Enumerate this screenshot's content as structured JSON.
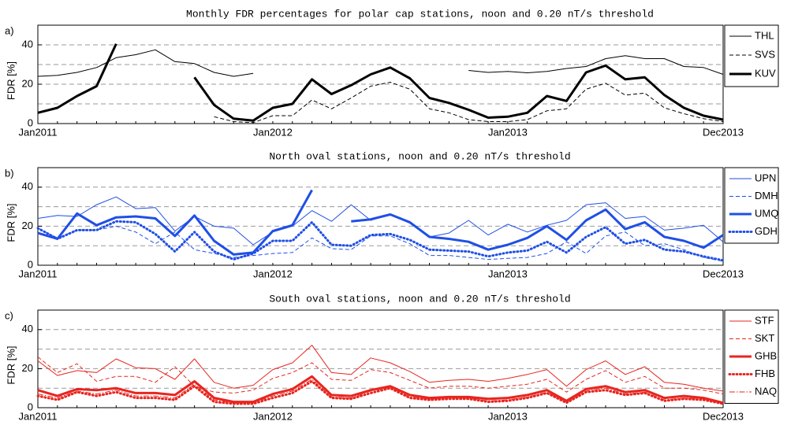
{
  "chart_data": [
    {
      "type": "line",
      "panel_label": "a)",
      "title": "Monthly FDR percentages for polar cap stations, noon and 0.20 nT/s threshold",
      "ylabel": "FDR [%]",
      "categories": [
        "Jan2011",
        null,
        null,
        null,
        null,
        null,
        null,
        null,
        null,
        null,
        null,
        null,
        "Jan2012",
        null,
        null,
        null,
        null,
        null,
        null,
        null,
        null,
        null,
        null,
        null,
        "Jan2013",
        null,
        null,
        null,
        null,
        null,
        null,
        null,
        null,
        null,
        null,
        "Dec2013"
      ],
      "ylim": [
        0,
        50
      ],
      "yticks": [
        0,
        20,
        40
      ],
      "grid_lines": [
        10,
        20,
        30,
        40
      ],
      "grid": true,
      "series": [
        {
          "name": "THL",
          "color": "#000000",
          "style": "solid",
          "width": 1,
          "values": [
            24,
            24.5,
            26,
            28.5,
            33.5,
            35,
            37.5,
            31.5,
            30.5,
            26,
            24,
            25.5,
            null,
            null,
            null,
            null,
            null,
            null,
            null,
            null,
            null,
            null,
            27,
            26,
            26.5,
            25.8,
            26.5,
            28,
            29,
            33,
            34.5,
            33,
            33,
            29,
            28.5,
            25
          ]
        },
        {
          "name": "SVS",
          "color": "#000000",
          "style": "dashed",
          "width": 1,
          "values": [
            null,
            null,
            null,
            null,
            null,
            null,
            null,
            null,
            null,
            3.5,
            1,
            0.5,
            4,
            4,
            12,
            7.5,
            13,
            19,
            21,
            17.5,
            7.5,
            5.5,
            2,
            1,
            1,
            2,
            6.5,
            7.5,
            17.5,
            20.5,
            14.5,
            15.5,
            8,
            5,
            2.5,
            1
          ]
        },
        {
          "name": "KUV",
          "color": "#000000",
          "style": "solid",
          "width": 3,
          "values": [
            5.5,
            8,
            14,
            19,
            40.5,
            null,
            null,
            null,
            23.5,
            9.5,
            2.5,
            1.5,
            8,
            10,
            22.5,
            15,
            19.5,
            25,
            28.5,
            23,
            13,
            10.5,
            7,
            3,
            3.5,
            5.5,
            14,
            11.5,
            26,
            29.5,
            22.5,
            23.5,
            14.5,
            8,
            4,
            2
          ]
        }
      ]
    },
    {
      "type": "line",
      "panel_label": "b)",
      "title": "North oval stations, noon and 0.20 nT/s threshold",
      "ylabel": "FDR [%]",
      "categories": [
        "Jan2011",
        null,
        null,
        null,
        null,
        null,
        null,
        null,
        null,
        null,
        null,
        null,
        "Jan2012",
        null,
        null,
        null,
        null,
        null,
        null,
        null,
        null,
        null,
        null,
        null,
        "Jan2013",
        null,
        null,
        null,
        null,
        null,
        null,
        null,
        null,
        null,
        null,
        "Dec2013"
      ],
      "ylim": [
        0,
        50
      ],
      "yticks": [
        0,
        20,
        40
      ],
      "grid_lines": [
        10,
        20,
        30,
        40
      ],
      "grid": true,
      "series": [
        {
          "name": "UPN",
          "color": "#1f4fe6",
          "style": "solid",
          "width": 1,
          "values": [
            24,
            25.5,
            25,
            31,
            35,
            29,
            29.5,
            17.5,
            25,
            20,
            19,
            10.5,
            17,
            20,
            28,
            22.5,
            31,
            23,
            26,
            21.5,
            14.5,
            16.5,
            23,
            15.5,
            21,
            17,
            20.5,
            23,
            31,
            32,
            24,
            25,
            18,
            19,
            20.5,
            12
          ]
        },
        {
          "name": "DMH",
          "color": "#1f4fe6",
          "style": "dashed",
          "width": 1,
          "values": [
            19,
            14,
            18,
            18,
            20,
            17,
            11,
            17,
            8,
            6,
            4,
            5,
            6,
            6.5,
            14,
            8.5,
            8,
            15,
            15,
            11,
            5,
            5,
            4,
            3,
            3.5,
            4,
            6,
            12,
            6,
            15,
            17,
            10,
            11,
            8,
            4,
            2
          ]
        },
        {
          "name": "UMQ",
          "color": "#1f4fe6",
          "style": "solid",
          "width": 3,
          "values": [
            16.5,
            13.5,
            26.5,
            20.5,
            24.5,
            25,
            24,
            15,
            25.5,
            12.5,
            5.5,
            6.5,
            17.5,
            20.5,
            38.5,
            null,
            22.5,
            23.5,
            26,
            22,
            14.5,
            13.5,
            12,
            8,
            10.5,
            14,
            20,
            13,
            23,
            28.5,
            18.5,
            22,
            14.5,
            12.5,
            9,
            15.5
          ]
        },
        {
          "name": "GDH",
          "color": "#1f4fe6",
          "style": "dotted",
          "width": 3,
          "values": [
            19,
            13.5,
            18,
            18,
            22.5,
            22,
            16,
            7,
            17,
            7,
            3,
            6,
            12.5,
            12.5,
            22,
            10.5,
            10,
            15.5,
            16,
            13,
            8,
            7.5,
            7,
            4.5,
            6.5,
            7.5,
            12,
            6.5,
            14.5,
            19.5,
            11,
            13,
            8,
            7,
            4.5,
            2.5
          ]
        }
      ]
    },
    {
      "type": "line",
      "panel_label": "c)",
      "title": "South oval stations, noon and 0.20 nT/s threshold",
      "ylabel": "FDR [%]",
      "categories": [
        "Jan2011",
        null,
        null,
        null,
        null,
        null,
        null,
        null,
        null,
        null,
        null,
        null,
        "Jan2012",
        null,
        null,
        null,
        null,
        null,
        null,
        null,
        null,
        null,
        null,
        null,
        "Jan2013",
        null,
        null,
        null,
        null,
        null,
        null,
        null,
        null,
        null,
        null,
        "Dec2013"
      ],
      "ylim": [
        0,
        50
      ],
      "yticks": [
        0,
        20,
        40
      ],
      "grid_lines": [
        10,
        20,
        30,
        40
      ],
      "grid": true,
      "series": [
        {
          "name": "STF",
          "color": "#e8251f",
          "style": "solid",
          "width": 1,
          "values": [
            24,
            16.5,
            19,
            18,
            25,
            20.5,
            20,
            14.5,
            25,
            13,
            10,
            11.5,
            19.5,
            23,
            32,
            18,
            17,
            25.5,
            23,
            18.5,
            13,
            14,
            14.5,
            13.5,
            15,
            17,
            19.5,
            11,
            19.5,
            24,
            17,
            21,
            13,
            12,
            10,
            8.5
          ]
        },
        {
          "name": "SKT",
          "color": "#e8251f",
          "style": "dashed",
          "width": 1,
          "values": [
            26,
            18,
            22.5,
            13.5,
            16,
            16,
            13,
            21,
            11,
            8,
            7.5,
            9,
            15,
            18,
            23,
            14.5,
            14,
            19.5,
            18,
            14,
            10,
            11,
            11,
            10,
            11,
            12,
            14.5,
            8,
            14.5,
            19,
            13,
            16,
            10,
            10,
            9,
            7
          ]
        },
        {
          "name": "GHB",
          "color": "#e8251f",
          "style": "solid",
          "width": 3,
          "values": [
            9,
            6,
            9.5,
            9,
            10,
            7.5,
            7.5,
            6.5,
            13.5,
            5,
            3,
            3,
            7,
            9.5,
            16,
            6.5,
            6,
            9,
            11,
            6.5,
            5,
            5.5,
            5.5,
            4.5,
            5,
            6.5,
            9,
            3.5,
            9.5,
            11,
            8,
            9,
            5,
            6,
            5,
            2.5
          ]
        },
        {
          "name": "FHB",
          "color": "#e8251f",
          "style": "dotted",
          "width": 3,
          "values": [
            6,
            4,
            8,
            6,
            8,
            5,
            5,
            4,
            11,
            3,
            2,
            2,
            5,
            7.5,
            13.5,
            5,
            4.5,
            7.5,
            10,
            5,
            4,
            4.5,
            4.5,
            3,
            3.5,
            5,
            7.5,
            2.5,
            8,
            9,
            6.5,
            7.5,
            3.5,
            4.5,
            4,
            2
          ]
        },
        {
          "name": "NAQ",
          "color": "#e8251f",
          "style": "dashdot",
          "width": 1,
          "values": [
            7,
            5,
            8.5,
            7,
            9,
            6,
            6,
            5,
            12,
            4,
            2.5,
            2.5,
            6,
            8.5,
            14.5,
            5.5,
            5,
            8.5,
            10.5,
            5.5,
            4.5,
            5,
            5,
            3.5,
            4,
            5.5,
            8,
            3,
            8.5,
            10,
            7,
            8,
            4,
            5,
            4.5,
            2
          ]
        }
      ]
    }
  ]
}
